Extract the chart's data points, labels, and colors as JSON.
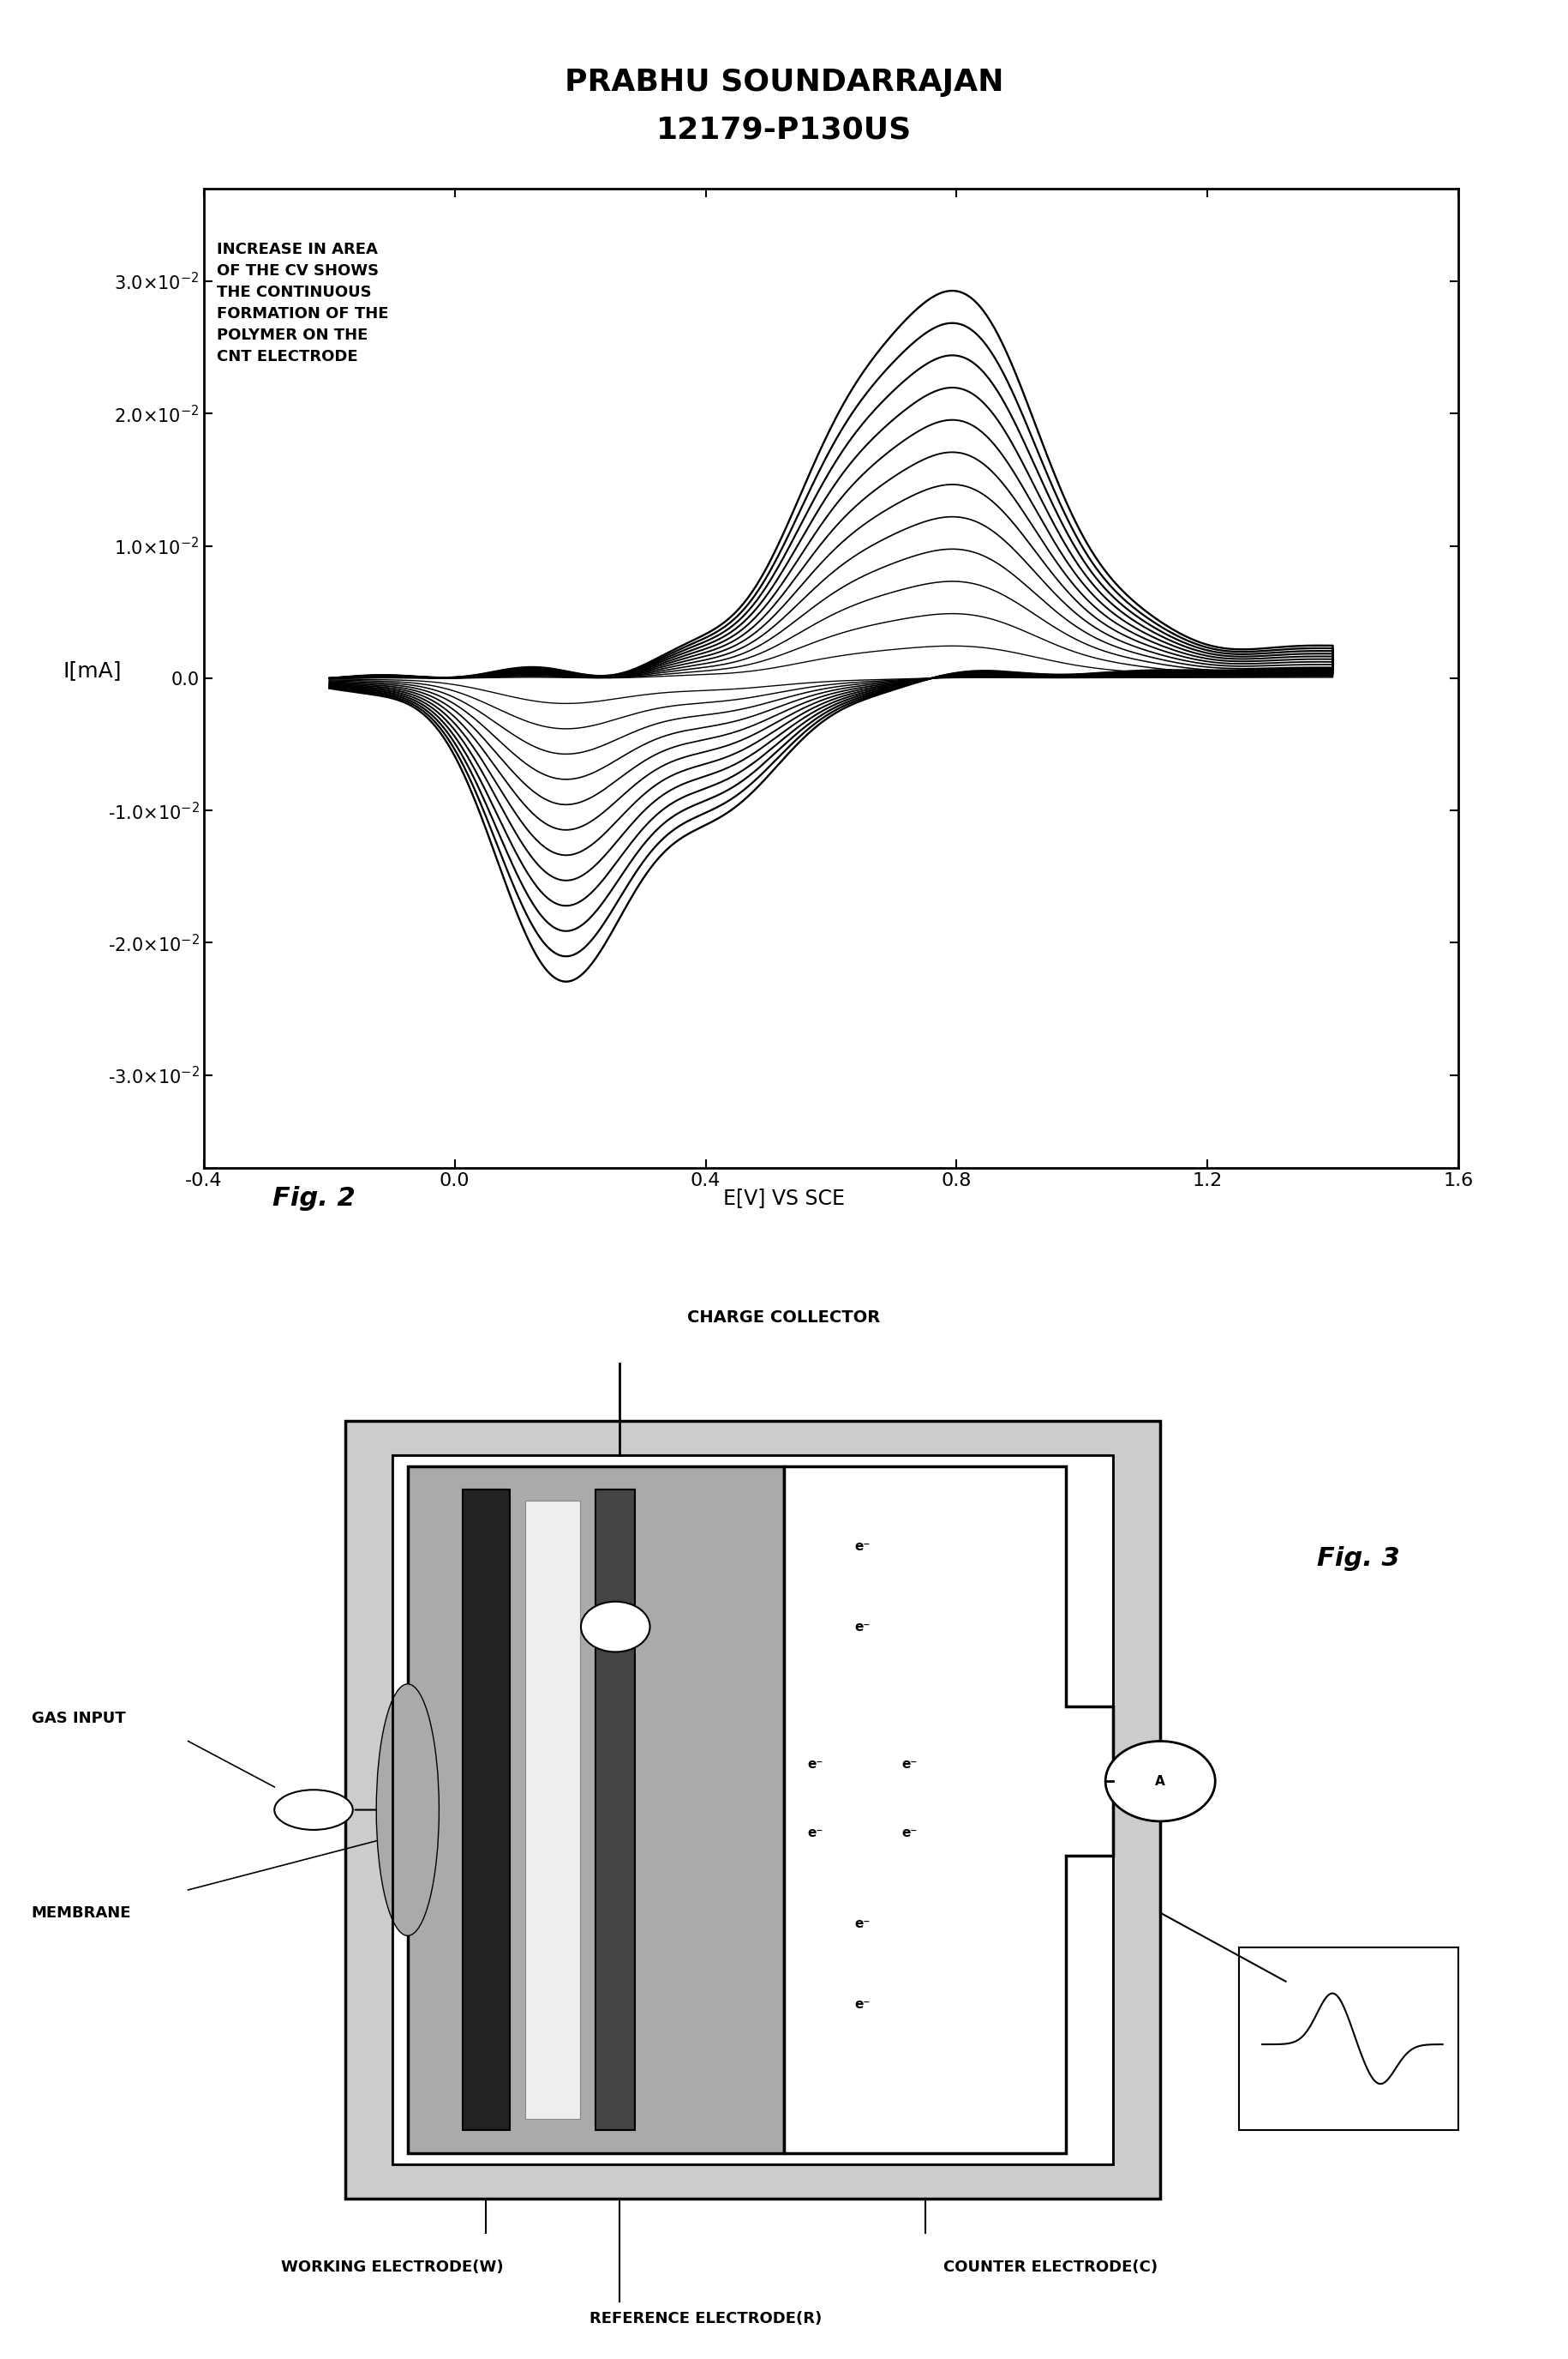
{
  "title_line1": "PRABHU SOUNDARRAJAN",
  "title_line2": "12179-P130US",
  "fig2_xlabel": "E[V] VS SCE",
  "fig2_ylabel": "I[mA]",
  "fig2_caption": "Fig. 2",
  "fig3_caption": "Fig. 3",
  "annotation_text": "INCREASE IN AREA\nOF THE CV SHOWS\nTHE CONTINUOUS\nFORMATION OF THE\nPOLYMER ON THE\nCNT ELECTRODE",
  "ytick_vals": [
    0.03,
    0.02,
    0.01,
    0.0,
    -0.01,
    -0.02,
    -0.03
  ],
  "xtick_labels": [
    "-0.4",
    "0.0",
    "0.4",
    "0.8",
    "1.2",
    "1.6"
  ],
  "xtick_vals": [
    -0.4,
    0.0,
    0.4,
    0.8,
    1.2,
    1.6
  ],
  "n_curves": 12,
  "bg_color": "#ffffff",
  "line_color": "#000000",
  "fig3_labels": {
    "charge_collector": "CHARGE COLLECTOR",
    "gas_input": "GAS INPUT",
    "membrane": "MEMBRANE",
    "working": "WORKING ELECTRODE(W)",
    "reference": "REFERENCE ELECTRODE(R)",
    "counter": "COUNTER ELECTRODE(C)"
  }
}
